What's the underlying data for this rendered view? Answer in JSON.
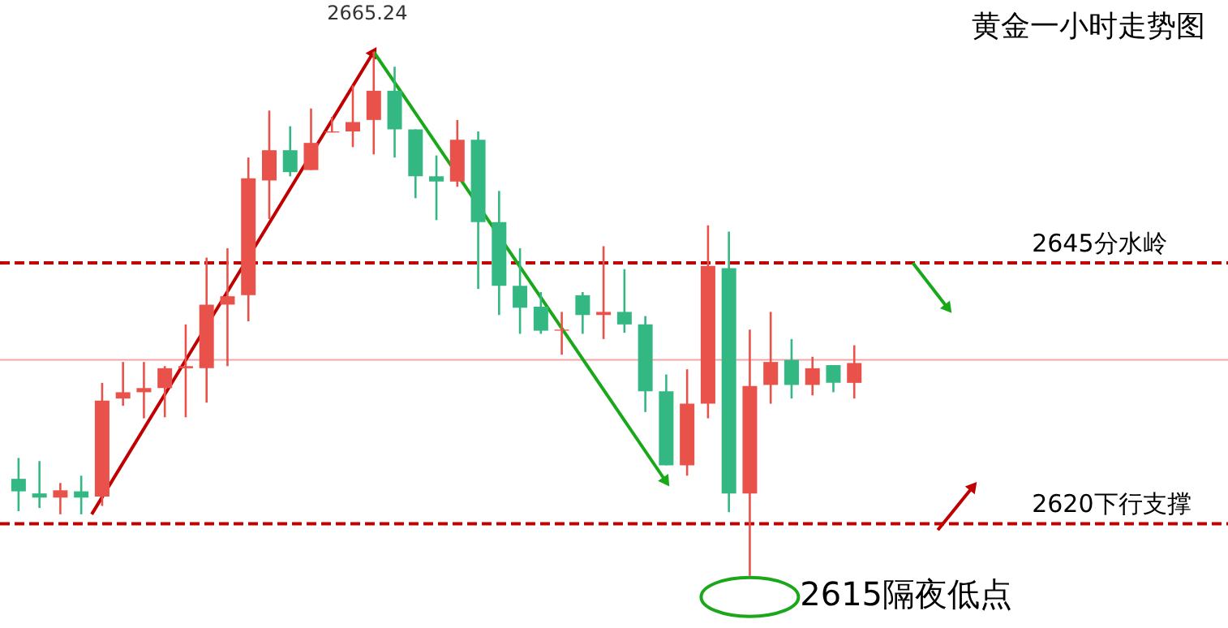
{
  "chart_data": {
    "type": "candlestick",
    "title": "黄金一小时走势图",
    "categories": [
      null,
      null,
      null,
      null,
      null,
      null,
      null,
      null,
      null,
      null,
      null,
      null,
      null,
      null,
      null,
      null,
      null,
      null,
      null,
      null,
      null,
      null,
      null,
      null,
      null,
      null,
      null,
      null,
      null,
      null,
      null,
      null,
      null,
      null,
      null,
      null,
      null,
      null,
      null,
      null,
      null
    ],
    "ohlc": [
      [
        2624.3,
        2626.3,
        2621.2,
        2623.1
      ],
      [
        2622.9,
        2626.0,
        2621.5,
        2622.5
      ],
      [
        2622.5,
        2623.9,
        2620.9,
        2623.2
      ],
      [
        2623.1,
        2624.6,
        2620.9,
        2622.5
      ],
      [
        2622.6,
        2633.5,
        2621.7,
        2631.8
      ],
      [
        2632.0,
        2635.5,
        2631.3,
        2632.6
      ],
      [
        2632.6,
        2635.5,
        2630.1,
        2633.0
      ],
      [
        2633.0,
        2635.1,
        2630.2,
        2634.9
      ],
      [
        2634.9,
        2639.1,
        2630.2,
        2635.1
      ],
      [
        2634.9,
        2645.5,
        2631.6,
        2641.0
      ],
      [
        2641.0,
        2646.4,
        2635.1,
        2641.8
      ],
      [
        2641.9,
        2655.1,
        2639.4,
        2653.1
      ],
      [
        2652.9,
        2659.6,
        2649.2,
        2655.8
      ],
      [
        2655.8,
        2658.1,
        2653.3,
        2653.7
      ],
      [
        2653.9,
        2659.8,
        2653.9,
        2656.5
      ],
      [
        2657.5,
        2659.0,
        2657.5,
        2657.6
      ],
      [
        2657.6,
        2662.0,
        2656.1,
        2658.5
      ],
      [
        2658.7,
        2665.24,
        2655.4,
        2661.5
      ],
      [
        2661.5,
        2663.8,
        2655.1,
        2657.8
      ],
      [
        2657.8,
        2657.8,
        2651.2,
        2653.3
      ],
      [
        2653.3,
        2655.3,
        2649.1,
        2652.8
      ],
      [
        2652.8,
        2658.7,
        2652.3,
        2656.8
      ],
      [
        2656.8,
        2657.6,
        2642.5,
        2648.9
      ],
      [
        2648.9,
        2651.9,
        2640.0,
        2642.8
      ],
      [
        2642.8,
        2646.4,
        2638.2,
        2640.7
      ],
      [
        2640.8,
        2642.2,
        2638.2,
        2638.5
      ],
      [
        2638.5,
        2640.3,
        2636.2,
        2638.6
      ],
      [
        2641.9,
        2642.2,
        2638.2,
        2640.0
      ],
      [
        2640.0,
        2646.6,
        2637.7,
        2640.3
      ],
      [
        2640.3,
        2644.4,
        2638.3,
        2639.1
      ],
      [
        2639.1,
        2639.9,
        2630.7,
        2632.7
      ],
      [
        2632.7,
        2634.3,
        2625.6,
        2625.6
      ],
      [
        2625.6,
        2634.8,
        2624.6,
        2631.5
      ],
      [
        2631.5,
        2648.6,
        2630.1,
        2644.7
      ],
      [
        2644.5,
        2648.0,
        2621.1,
        2622.9
      ],
      [
        2622.9,
        2638.6,
        2615.0,
        2633.2
      ],
      [
        2633.3,
        2640.3,
        2631.5,
        2635.5
      ],
      [
        2635.7,
        2637.7,
        2632.0,
        2633.3
      ],
      [
        2633.3,
        2636.0,
        2632.3,
        2634.9
      ],
      [
        2635.2,
        2635.2,
        2632.6,
        2633.5
      ],
      [
        2633.5,
        2637.1,
        2632.0,
        2635.4
      ]
    ],
    "colors": [
      "#33b883",
      "#33b883",
      "#e8524a",
      "#33b883",
      "#e8524a",
      "#e8524a",
      "#e8524a",
      "#e8524a",
      "#e8524a",
      "#e8524a",
      "#e8524a",
      "#e8524a",
      "#e8524a",
      "#33b883",
      "#e8524a",
      "#e8524a",
      "#e8524a",
      "#e8524a",
      "#33b883",
      "#33b883",
      "#33b883",
      "#e8524a",
      "#33b883",
      "#33b883",
      "#33b883",
      "#33b883",
      "#e8524a",
      "#33b883",
      "#e8524a",
      "#33b883",
      "#33b883",
      "#33b883",
      "#e8524a",
      "#e8524a",
      "#33b883",
      "#e8524a",
      "#e8524a",
      "#33b883",
      "#e8524a",
      "#33b883",
      "#e8524a"
    ],
    "ylim": [
      2610.0,
      2670.2
    ],
    "tick_labels": false,
    "ref_lines": [
      {
        "axis": "y",
        "value": 2645,
        "label": "2645分水岭",
        "color": "#c00000",
        "line_style": "dashed"
      },
      {
        "axis": "y",
        "value": 2620,
        "label": "2620下行支撑",
        "color": "#c00000",
        "line_style": "dashed"
      },
      {
        "axis": "y",
        "value": 2635.7,
        "label": null,
        "color": "#f4a6a6",
        "line_style": "solid"
      }
    ],
    "annotations": [
      {
        "text": "2665.24",
        "y": 2665.24
      },
      "2615隔夜低点"
    ]
  }
}
